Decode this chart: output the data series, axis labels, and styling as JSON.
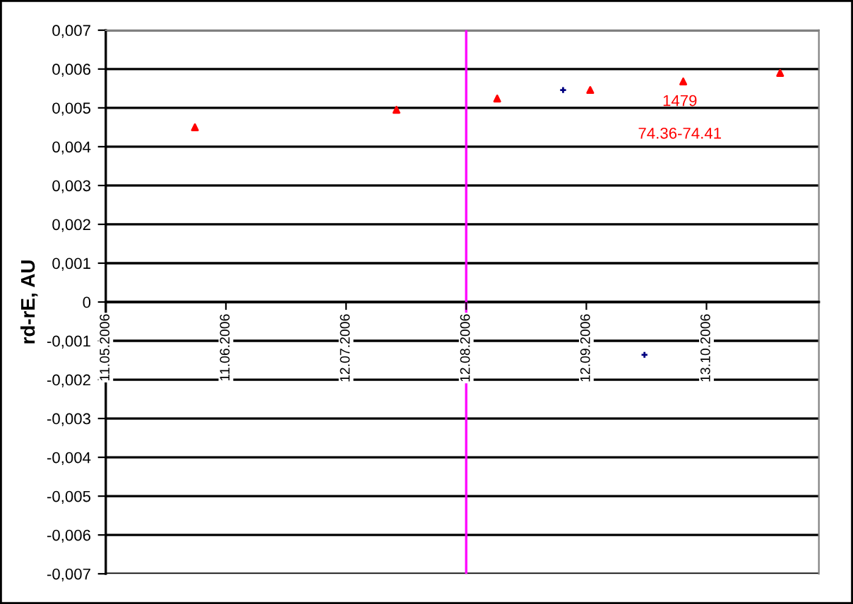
{
  "chart_data": {
    "type": "scatter",
    "ylabel": "rd-rE, AU",
    "series": [
      {
        "color": "#ff0000",
        "marker": "triangle",
        "x": [
          "2006-06-03",
          "2006-07-25",
          "2006-08-20",
          "2006-09-13",
          "2006-10-07",
          "2006-11-01"
        ],
        "values": [
          0.0045,
          0.00495,
          0.00524,
          0.00546,
          0.00568,
          0.0059
        ]
      },
      {
        "color": "#000080",
        "marker": "cross",
        "x": [
          "2006-09-06",
          "2006-09-27"
        ],
        "values": [
          0.00546,
          -0.00136
        ]
      }
    ],
    "xlim": [
      "2006-05-11",
      "2006-11-11"
    ],
    "xticks": [
      {
        "value": "2006-05-11",
        "label": "11.05.2006"
      },
      {
        "value": "2006-06-11",
        "label": "11.06.2006"
      },
      {
        "value": "2006-07-12",
        "label": "12.07.2006"
      },
      {
        "value": "2006-08-12",
        "label": "12.08.2006"
      },
      {
        "value": "2006-09-12",
        "label": "12.09.2006"
      },
      {
        "value": "2006-10-13",
        "label": "13.10.2006"
      }
    ],
    "ylim": [
      -0.007,
      0.007
    ],
    "yticks": [
      {
        "value": -0.007,
        "label": "-0,007"
      },
      {
        "value": -0.006,
        "label": "-0,006"
      },
      {
        "value": -0.005,
        "label": "-0,005"
      },
      {
        "value": -0.004,
        "label": "-0,004"
      },
      {
        "value": -0.003,
        "label": "-0,003"
      },
      {
        "value": -0.002,
        "label": "-0,002"
      },
      {
        "value": -0.001,
        "label": "-0,001"
      },
      0,
      {
        "value": 0.001,
        "label": "0,001"
      },
      {
        "value": 0.002,
        "label": "0,002"
      },
      {
        "value": 0.003,
        "label": "0,003"
      },
      {
        "value": 0.004,
        "label": "0,004"
      },
      {
        "value": 0.005,
        "label": "0,005"
      },
      {
        "value": 0.006,
        "label": "0,006"
      },
      {
        "value": 0.007,
        "label": "0,007"
      }
    ],
    "grid": "y",
    "ref_lines": [
      {
        "axis": "x",
        "value": "2006-08-12",
        "color": "#ff00ff"
      }
    ],
    "annotations": [
      "1479",
      "74.36-74.41"
    ]
  }
}
